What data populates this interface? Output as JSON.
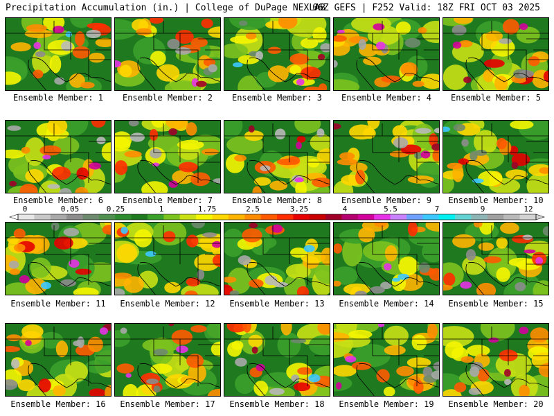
{
  "header": {
    "left": "Precipitation Accumulation (in.) | College of DuPage NEXLAB",
    "right": "06Z GEFS | F252 Valid: 18Z FRI OCT 03 2025"
  },
  "panels": [
    {
      "label": "Ensemble Member: 1"
    },
    {
      "label": "Ensemble Member: 2"
    },
    {
      "label": "Ensemble Member: 3"
    },
    {
      "label": "Ensemble Member: 4"
    },
    {
      "label": "Ensemble Member: 5"
    },
    {
      "label": "Ensemble Member: 6"
    },
    {
      "label": "Ensemble Member: 7"
    },
    {
      "label": "Ensemble Member: 8"
    },
    {
      "label": "Ensemble Member: 9"
    },
    {
      "label": "Ensemble Member: 10"
    },
    {
      "label": "Ensemble Member: 11"
    },
    {
      "label": "Ensemble Member: 12"
    },
    {
      "label": "Ensemble Member: 13"
    },
    {
      "label": "Ensemble Member: 14"
    },
    {
      "label": "Ensemble Member: 15"
    },
    {
      "label": "Ensemble Member: 16"
    },
    {
      "label": "Ensemble Member: 17"
    },
    {
      "label": "Ensemble Member: 18"
    },
    {
      "label": "Ensemble Member: 19"
    },
    {
      "label": "Ensemble Member: 20"
    }
  ],
  "colorbar": {
    "tick_labels": [
      "0",
      "0.05",
      "0.25",
      "1",
      "1.75",
      "2.5",
      "3.25",
      "4",
      "5.5",
      "7",
      "9",
      "12"
    ],
    "colors": [
      "#e6e6e6",
      "#c8c8c8",
      "#a8a8a8",
      "#8c8c8c",
      "#6e8a6e",
      "#4f8f4f",
      "#2e8b2e",
      "#1f7a1f",
      "#3aa02a",
      "#7cc21e",
      "#c8e014",
      "#f5f500",
      "#ffd700",
      "#ffb400",
      "#ff8c00",
      "#ff5a00",
      "#ff2d00",
      "#e60000",
      "#c80000",
      "#a00028",
      "#b4006e",
      "#d2009b",
      "#e632e6",
      "#c882ff",
      "#6ea0ff",
      "#3cc8ff",
      "#00f0f0",
      "#64d2d2",
      "#8cb4b4",
      "#a0a0a0",
      "#b9b9b9",
      "#d2d2d2"
    ]
  }
}
